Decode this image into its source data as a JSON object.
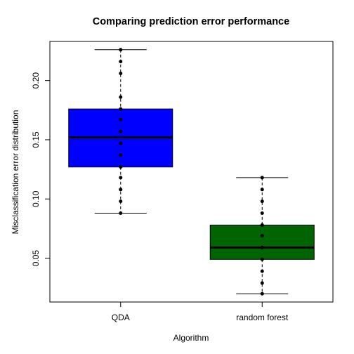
{
  "chart_data": {
    "type": "box",
    "title": "Comparing prediction error performance",
    "xlabel": "Algorithm",
    "ylabel": "Misclassification error distribution",
    "ylim": [
      0.013,
      0.233
    ],
    "yticks": [
      "0.05",
      "0.10",
      "0.15",
      "0.20"
    ],
    "grid": false,
    "legend": "none",
    "series": [
      {
        "name": "QDA",
        "color": "#0000FF",
        "whisker_low": 0.088,
        "q1": 0.127,
        "median": 0.152,
        "q3": 0.176,
        "whisker_high": 0.226,
        "points": [
          0.088,
          0.098,
          0.108,
          0.118,
          0.127,
          0.137,
          0.147,
          0.157,
          0.167,
          0.176,
          0.186,
          0.206,
          0.216,
          0.226
        ]
      },
      {
        "name": "random forest",
        "color": "#006400",
        "whisker_low": 0.02,
        "q1": 0.049,
        "median": 0.059,
        "q3": 0.078,
        "whisker_high": 0.118,
        "points": [
          0.02,
          0.029,
          0.039,
          0.049,
          0.059,
          0.069,
          0.078,
          0.088,
          0.098,
          0.108,
          0.118
        ]
      }
    ]
  }
}
